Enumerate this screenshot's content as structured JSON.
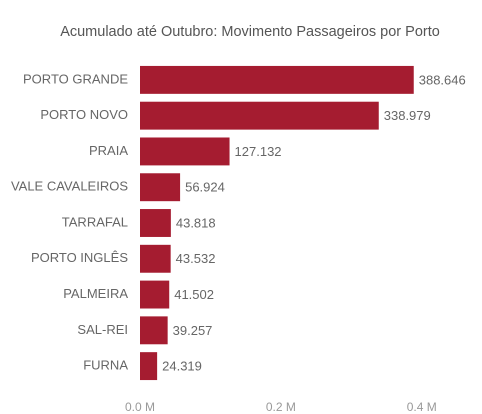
{
  "chart_data": {
    "type": "bar",
    "orientation": "horizontal",
    "title": "Acumulado até Outubro: Movimento Passageiros por Porto",
    "categories": [
      "PORTO GRANDE",
      "PORTO NOVO",
      "PRAIA",
      "VALE CAVALEIROS",
      "TARRAFAL",
      "PORTO INGLÊS",
      "PALMEIRA",
      "SAL-REI",
      "FURNA"
    ],
    "values": [
      388646,
      338979,
      127132,
      56924,
      43818,
      43532,
      41502,
      39257,
      24319
    ],
    "value_labels": [
      "388.646",
      "338.979",
      "127.132",
      "56.924",
      "43.818",
      "43.532",
      "41.502",
      "39.257",
      "24.319"
    ],
    "color": "#a51c30",
    "xlim": [
      0,
      460000
    ],
    "xticks": [
      {
        "value": 0,
        "label": "0.0 M"
      },
      {
        "value": 200000,
        "label": "0.2 M"
      },
      {
        "value": 400000,
        "label": "0.4 M"
      }
    ],
    "grid": false
  }
}
